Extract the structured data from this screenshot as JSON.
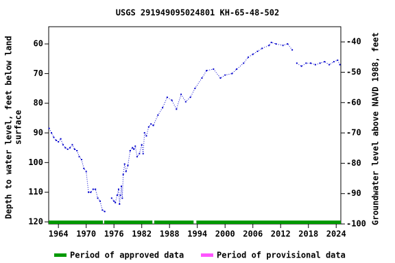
{
  "chart_data": {
    "type": "line",
    "title": "USGS 291949095024801 KH-65-48-502",
    "ylabel": [
      "Depth to water level, feet below land",
      "surface"
    ],
    "y2label": "Groundwater level above NAVD 1988, feet",
    "x": [
      1962.0,
      1962.5,
      1963.0,
      1963.5,
      1964.0,
      1964.5,
      1965.0,
      1965.5,
      1966.0,
      1966.5,
      1967.0,
      1967.5,
      1968.0,
      1968.5,
      1969.0,
      1969.5,
      1970.0,
      1970.5,
      1971.0,
      1971.5,
      1972.0,
      1972.5,
      1973.0,
      1973.5,
      1974.0,
      1975.0,
      1975.5,
      1976.0,
      1976.3,
      1976.7,
      1977.0,
      1977.2,
      1977.4,
      1977.6,
      1977.8,
      1978.0,
      1978.3,
      1978.6,
      1979.0,
      1979.5,
      1980.0,
      1980.3,
      1980.6,
      1981.0,
      1981.5,
      1982.0,
      1982.3,
      1982.6,
      1983.0,
      1983.5,
      1984.0,
      1984.5,
      1985.5,
      1986.5,
      1987.5,
      1988.5,
      1989.5,
      1990.5,
      1991.5,
      1992.5,
      1993.5,
      1995.0,
      1996.0,
      1997.5,
      1999.0,
      2000.0,
      2001.5,
      2002.5,
      2004.0,
      2005.0,
      2006.0,
      2007.0,
      2008.0,
      2009.5,
      2010.0,
      2011.0,
      2012.5,
      2013.5,
      2014.5,
      2015.0,
      2015.5,
      2016.5,
      2017.5,
      2018.5,
      2019.5,
      2020.5,
      2021.5,
      2022.5,
      2023.5,
      2024.3,
      2024.8
    ],
    "values": [
      88.5,
      90,
      91.5,
      92.5,
      93,
      92,
      94,
      95,
      95.5,
      95,
      94,
      95.5,
      96,
      98,
      99,
      102,
      103,
      110,
      110,
      109,
      109,
      112,
      113,
      116,
      116.5,
      null,
      112,
      113,
      113.5,
      111,
      109,
      114,
      111,
      108,
      112,
      104,
      100.5,
      103,
      101,
      96,
      95,
      95.5,
      94.5,
      98,
      97,
      94,
      97,
      90,
      91,
      88,
      87,
      87.5,
      84,
      81.5,
      78,
      79,
      82,
      77,
      79.5,
      78,
      75,
      71.5,
      69,
      68.5,
      71.5,
      70.5,
      70,
      68.5,
      66.5,
      64.5,
      63.5,
      62.5,
      61.5,
      60.5,
      59.5,
      60,
      60.5,
      60,
      62,
      null,
      66.5,
      67.5,
      66.5,
      66.5,
      67,
      66.5,
      66,
      67,
      66,
      65.5,
      67
    ],
    "color": "#0000cc",
    "xlim": [
      1961.9,
      2025.0
    ],
    "xticks": [
      1964,
      1970,
      1976,
      1982,
      1988,
      1994,
      2000,
      2006,
      2012,
      2018,
      2024
    ],
    "ylim": [
      120.7,
      54.2
    ],
    "yticks": [
      60,
      70,
      80,
      90,
      100,
      110,
      120
    ],
    "y2lim": [
      -100,
      -35
    ],
    "y2ticks": [
      -40,
      -50,
      -60,
      -70,
      -80,
      -90,
      -100
    ],
    "approved_periods": [
      [
        1961.9,
        1973.6
      ],
      [
        1973.9,
        1984.3
      ],
      [
        1984.7,
        1993.2
      ],
      [
        1993.8,
        2025.0
      ]
    ],
    "approved_color": "#009900",
    "provisional_color": "#ff55ff",
    "legend": [
      "Period of approved data",
      "Period of provisional data"
    ]
  }
}
